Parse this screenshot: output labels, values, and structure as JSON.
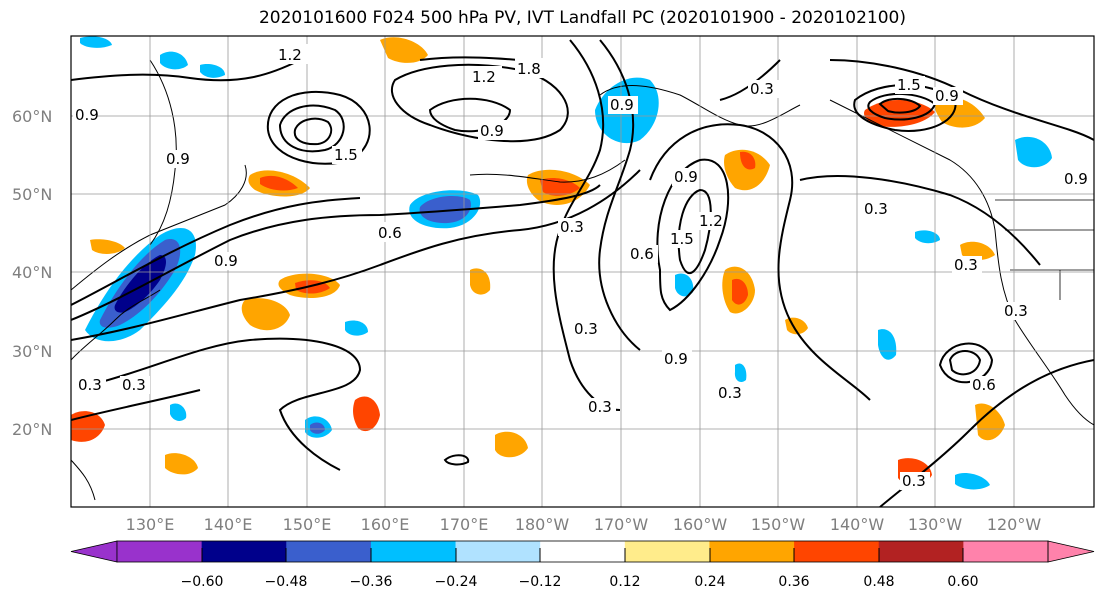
{
  "title": "2020101600 F024 500 hPa PV, IVT Landfall PC (2020101900 - 2020102100)",
  "lat_labels": [
    "60°N",
    "50°N",
    "40°N",
    "30°N",
    "20°N"
  ],
  "lon_labels": [
    "130°E",
    "140°E",
    "150°E",
    "160°E",
    "170°E",
    "180°W",
    "170°W",
    "160°W",
    "150°W",
    "140°W",
    "130°W",
    "120°W"
  ],
  "colorbar": {
    "tick_labels": [
      "−0.60",
      "−0.48",
      "−0.36",
      "−0.24",
      "−0.12",
      "0.12",
      "0.24",
      "0.36",
      "0.48",
      "0.60"
    ],
    "colors": [
      "#9932cc",
      "#00008b",
      "#3a5fcd",
      "#00bfff",
      "#b0e2ff",
      "#ffffff",
      "#ffec8b",
      "#ffa500",
      "#ff4500",
      "#b22222",
      "#ff82ab"
    ]
  },
  "contour_labels": [
    "1.2",
    "1.2",
    "1.8",
    "0.9",
    "0.9",
    "0.9",
    "0.3",
    "1.5",
    "0.9",
    "0.6",
    "0.3",
    "0.6",
    "0.3",
    "0.9",
    "1.5",
    "1.2",
    "0.9",
    "0.3",
    "0.3",
    "0.9",
    "0.3",
    "0.3",
    "0.6",
    "0.3",
    "0.3",
    "0.3",
    "0.3",
    "0.9",
    "1.5",
    "0.9"
  ]
}
